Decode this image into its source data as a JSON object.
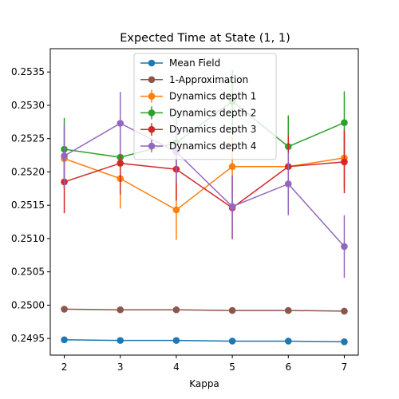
{
  "chart_data": {
    "type": "line",
    "title": "Expected Time at State (1, 1)",
    "xlabel": "Kappa",
    "ylabel": "",
    "x": [
      2,
      3,
      4,
      5,
      6,
      7
    ],
    "xlim": [
      1.75,
      7.25
    ],
    "ylim": [
      0.24925,
      0.25385
    ],
    "xticks": [
      "2",
      "3",
      "4",
      "5",
      "6",
      "7"
    ],
    "yticks": [
      "0.2495",
      "0.2500",
      "0.2505",
      "0.2510",
      "0.2515",
      "0.2520",
      "0.2525",
      "0.2530",
      "0.2535"
    ],
    "ytick_values": [
      0.2495,
      0.25,
      0.2505,
      0.251,
      0.2515,
      0.252,
      0.2525,
      0.253,
      0.2535
    ],
    "grid": false,
    "legend_position": "top-center",
    "series": [
      {
        "name": "Mean Field",
        "color": "#1f77b4",
        "values": [
          0.24948,
          0.24947,
          0.24947,
          0.24946,
          0.24946,
          0.24945
        ]
      },
      {
        "name": "1-Approximation",
        "color": "#8c564b",
        "values": [
          0.24994,
          0.24993,
          0.24993,
          0.24992,
          0.24992,
          0.24991
        ]
      },
      {
        "name": "Dynamics depth 1",
        "color": "#ff7f0e",
        "values": [
          0.2522,
          0.2519,
          0.25143,
          0.25208,
          0.25208,
          0.25221
        ],
        "errors": [
          0.00045,
          0.00045,
          0.00045,
          0.00045,
          0.00045,
          0.00045
        ]
      },
      {
        "name": "Dynamics depth 2",
        "color": "#2ca02c",
        "values": [
          0.25234,
          0.25222,
          0.25244,
          0.25306,
          0.25238,
          0.25274
        ],
        "errors": [
          0.00047,
          0.00047,
          0.00047,
          0.00047,
          0.00047,
          0.00047
        ]
      },
      {
        "name": "Dynamics depth 3",
        "color": "#d62728",
        "values": [
          0.25185,
          0.25213,
          0.25204,
          0.25146,
          0.25208,
          0.25215
        ],
        "errors": [
          0.00047,
          0.00047,
          0.00047,
          0.00047,
          0.00047,
          0.00047
        ]
      },
      {
        "name": "Dynamics depth 4",
        "color": "#9467bd",
        "values": [
          0.25224,
          0.25273,
          0.2523,
          0.25148,
          0.25182,
          0.25088
        ],
        "errors": [
          0.00047,
          0.00047,
          0.00047,
          0.00047,
          0.00047,
          0.00047
        ]
      }
    ]
  }
}
